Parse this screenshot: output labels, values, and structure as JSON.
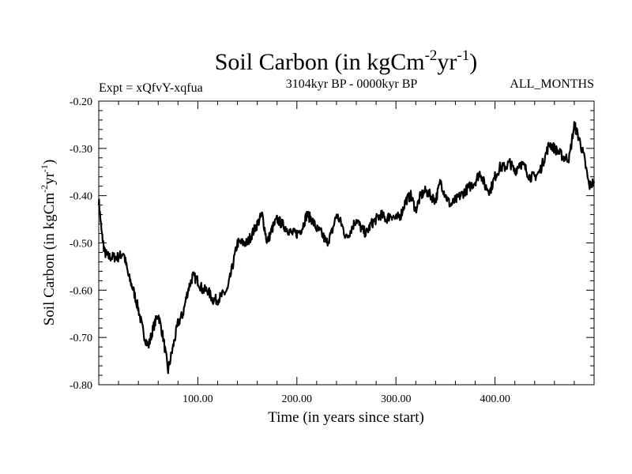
{
  "chart_data": {
    "type": "line",
    "title": "Soil Carbon (in kgCm",
    "title_sup1": "-2",
    "title_mid": "yr",
    "title_sup2": "-1",
    "title_end": ")",
    "subtitle_left": "Expt = xQfvY-xqfua",
    "subtitle_center": "3104kyr BP - 0000kyr BP",
    "subtitle_right": "ALL_MONTHS",
    "xlabel": "Time (in years since start)",
    "ylabel": "Soil Carbon (in kgCm",
    "ylabel_sup1": "-2",
    "ylabel_mid": "yr",
    "ylabel_sup2": "-1",
    "ylabel_end": ")",
    "xlim": [
      0,
      500
    ],
    "ylim": [
      -0.8,
      -0.2
    ],
    "x_ticks": [
      100,
      200,
      300,
      400
    ],
    "x_tick_labels": [
      "100.00",
      "200.00",
      "300.00",
      "400.00"
    ],
    "y_ticks": [
      -0.8,
      -0.7,
      -0.6,
      -0.5,
      -0.4,
      -0.3,
      -0.2
    ],
    "y_tick_labels": [
      "-0.80",
      "-0.70",
      "-0.60",
      "-0.50",
      "-0.40",
      "-0.30",
      "-0.20"
    ],
    "series": [
      {
        "name": "Soil Carbon",
        "color": "#000000",
        "x": [
          0,
          3,
          6,
          10,
          15,
          20,
          25,
          30,
          35,
          40,
          45,
          50,
          55,
          60,
          65,
          70,
          75,
          80,
          85,
          90,
          95,
          100,
          105,
          110,
          115,
          120,
          125,
          130,
          135,
          140,
          145,
          150,
          155,
          160,
          165,
          170,
          175,
          180,
          185,
          190,
          195,
          200,
          205,
          210,
          215,
          220,
          225,
          230,
          235,
          240,
          245,
          250,
          255,
          260,
          265,
          270,
          275,
          280,
          285,
          290,
          295,
          300,
          305,
          310,
          315,
          320,
          325,
          330,
          335,
          340,
          345,
          350,
          355,
          360,
          365,
          370,
          375,
          380,
          385,
          390,
          395,
          400,
          405,
          410,
          415,
          420,
          425,
          430,
          435,
          440,
          445,
          450,
          455,
          460,
          465,
          470,
          475,
          480,
          485,
          490,
          495,
          500
        ],
        "values": [
          -0.41,
          -0.48,
          -0.52,
          -0.53,
          -0.53,
          -0.53,
          -0.52,
          -0.57,
          -0.6,
          -0.64,
          -0.69,
          -0.72,
          -0.68,
          -0.65,
          -0.7,
          -0.77,
          -0.72,
          -0.67,
          -0.65,
          -0.6,
          -0.57,
          -0.58,
          -0.6,
          -0.6,
          -0.62,
          -0.62,
          -0.61,
          -0.6,
          -0.55,
          -0.5,
          -0.5,
          -0.5,
          -0.48,
          -0.46,
          -0.44,
          -0.5,
          -0.47,
          -0.45,
          -0.46,
          -0.47,
          -0.48,
          -0.48,
          -0.47,
          -0.44,
          -0.45,
          -0.47,
          -0.48,
          -0.5,
          -0.48,
          -0.44,
          -0.46,
          -0.49,
          -0.47,
          -0.45,
          -0.47,
          -0.48,
          -0.46,
          -0.45,
          -0.44,
          -0.45,
          -0.44,
          -0.45,
          -0.44,
          -0.41,
          -0.4,
          -0.43,
          -0.4,
          -0.39,
          -0.4,
          -0.41,
          -0.37,
          -0.4,
          -0.42,
          -0.41,
          -0.4,
          -0.39,
          -0.38,
          -0.37,
          -0.35,
          -0.38,
          -0.39,
          -0.36,
          -0.34,
          -0.34,
          -0.33,
          -0.35,
          -0.33,
          -0.34,
          -0.36,
          -0.36,
          -0.35,
          -0.32,
          -0.29,
          -0.3,
          -0.31,
          -0.32,
          -0.32,
          -0.25,
          -0.28,
          -0.32,
          -0.38,
          -0.37
        ]
      }
    ]
  }
}
